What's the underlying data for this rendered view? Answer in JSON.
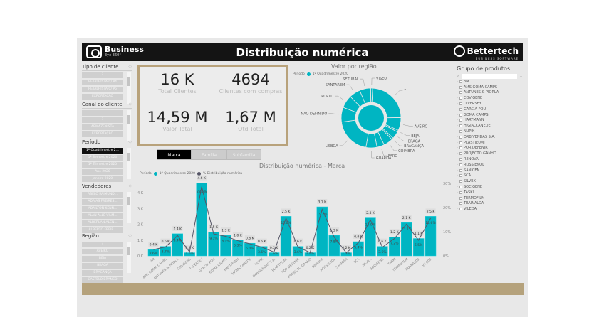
{
  "header": {
    "app_logo": "Business",
    "app_logo_sub": "Eye 360°",
    "title": "Distribuição numérica",
    "brand": "Bettertech",
    "brand_sub": "BUSINESS SOFTWARE"
  },
  "slicers": [
    {
      "title": "Tipo de cliente",
      "items": [
        "?",
        "RETALHISTA C/ P4",
        "RETALHISTA C/ P5",
        "EXPORTAÇÃO"
      ],
      "selected": -1
    },
    {
      "title": "Canal do cliente",
      "items": [
        "",
        "?",
        "ARMAZENISTA",
        "EXPORTAÇÃO"
      ],
      "selected": -1
    },
    {
      "title": "Período",
      "items": [
        "1º Quadrimestre 2...",
        "1º Semestre 2020",
        "1º Trimestre 2020",
        "Ano 2020",
        "Janeiro 2020"
      ],
      "selected": 0
    },
    {
      "title": "Vendedores",
      "items": [
        "ABELO RAIMUND...",
        "ADAIAS FREIRES...",
        "ADAILTON KENN...",
        "ALAN ALLE VILM...",
        "ALBERLAN ALEN...",
        "ALBERTO FREIR..."
      ],
      "selected": -1
    },
    {
      "title": "Região",
      "items": [
        "?",
        "AVEIRO",
        "BEJA",
        "BRAGA",
        "BRAGANÇA",
        "CASTELO BRANCO"
      ],
      "selected": -1
    }
  ],
  "kpis": [
    {
      "value": "16 K",
      "label": "Total Clientes"
    },
    {
      "value": "4694",
      "label": "Clientes com compras"
    },
    {
      "value": "14,59 M",
      "label": "Valor Total"
    },
    {
      "value": "1,67 M",
      "label": "Qtd Total"
    }
  ],
  "tabs": [
    {
      "label": "Marca",
      "active": true
    },
    {
      "label": "Família",
      "active": false
    },
    {
      "label": "Subfamília",
      "active": false
    }
  ],
  "product_groups": {
    "title": "Grupo de produtos",
    "search_placeholder": "",
    "items": [
      "3M",
      "AMS GOMA CAMPS",
      "ANTUNES & PIORLA",
      "COVIGENE",
      "DIVERSEY",
      "GARCIA POU",
      "GOMA CAMPS",
      "HARTMANN",
      "HIGIALCANEDE",
      "NUPIK",
      "ORBIVENDAS S.A.",
      "PLASTIEUMI",
      "POR DEFENIR",
      "PROJECTO GANHO",
      "RENOVA",
      "ROSSIENOL",
      "SANICEN",
      "SCA",
      "SILVEX",
      "SOCIGENE",
      "TASKI",
      "TERMOFILM",
      "TRAINALDA",
      "VILEDA"
    ]
  },
  "colors": {
    "accent": "#00b5c2",
    "line": "#555566",
    "gold": "#b8a27b",
    "header": "#141414"
  },
  "chart_data": [
    {
      "type": "pie",
      "title": "Valor por região",
      "legend_title": "Período",
      "legend": [
        "1º Quadrimestre 2020"
      ],
      "donut": true,
      "categories": [
        "?",
        "AVEIRO",
        "BEJA",
        "BRAGA",
        "BRAGANÇA",
        "COIMBRA",
        "FARO",
        "GUARDA",
        "LISBOA",
        "NAO DEFINIDO",
        "PORTO",
        "SANTAREM",
        "SETUBAL",
        "VISEU"
      ],
      "values": [
        24,
        7,
        1,
        4,
        1,
        5,
        4,
        6,
        20,
        8,
        7,
        6,
        6,
        1
      ]
    },
    {
      "type": "bar",
      "title": "Distribuição numérica - Marca",
      "legend_title": "Período",
      "legend": [
        "1º Quadrimestre 2020",
        "% Distribuição numérica"
      ],
      "categories": [
        "3M",
        "AMS GOMA CAMPS",
        "ANTUNES & PIORLA",
        "COVIGENE",
        "DIVERSEY",
        "GARCIA POU",
        "GOMA CAMPS",
        "HARTMANN",
        "HIGIALCANEDE",
        "NUPIK",
        "ORBIVENDAS S.A.",
        "PLASTIEUMI",
        "POR DEFENIR",
        "PROJECTO GANHO",
        "RENOVA",
        "ROSSIENOL",
        "SANICEN",
        "SCA",
        "SILVEX",
        "SOCIGENE",
        "TASKI",
        "TERMOFILM",
        "TRAINALDA",
        "VILEDA"
      ],
      "series": [
        {
          "name": "1º Quadrimestre 2020",
          "axis": "left",
          "values": [
            0.4,
            0.6,
            1.4,
            0.2,
            4.6,
            1.5,
            1.3,
            1.0,
            0.8,
            0.6,
            0.2,
            2.5,
            0.6,
            0.2,
            3.1,
            1.3,
            0.2,
            0.9,
            2.4,
            0.6,
            1.2,
            2.1,
            1.1,
            2.5
          ],
          "labels": [
            "0.4 K",
            "0.6 K",
            "1.4 K",
            "0.2 K",
            "4.6 K",
            "1.5 K",
            "1.3 K",
            "1.0 K",
            "0.8 K",
            "0.6 K",
            "0.2 K",
            "2.5 K",
            "0.6 K",
            "0.2 K",
            "3.1 K",
            "1.3 K",
            "0.2 K",
            "0.9 K",
            "2.4 K",
            "0.6 K",
            "1.2 K",
            "2.1 K",
            "1.1 K",
            "2.5 K"
          ]
        },
        {
          "name": "% Distribuição numérica",
          "axis": "right",
          "type": "line",
          "values": [
            2.6,
            3.7,
            8.4,
            1.6,
            28.6,
            9.1,
            8.1,
            6.3,
            5.0,
            3.6,
            1.6,
            15.6,
            3.6,
            1.4,
            19.2,
            7.8,
            1.3,
            5.4,
            14.9,
            3.6,
            7.2,
            13.1,
            6.5,
            15.6
          ]
        }
      ],
      "yticks_left": [
        "0 K",
        "1 K",
        "2 K",
        "3 K",
        "4 K"
      ],
      "ylim_left": [
        0,
        4.6
      ],
      "yticks_right": [
        "0%",
        "10%",
        "20%",
        "30%"
      ],
      "ylim_right": [
        0,
        30
      ]
    }
  ]
}
